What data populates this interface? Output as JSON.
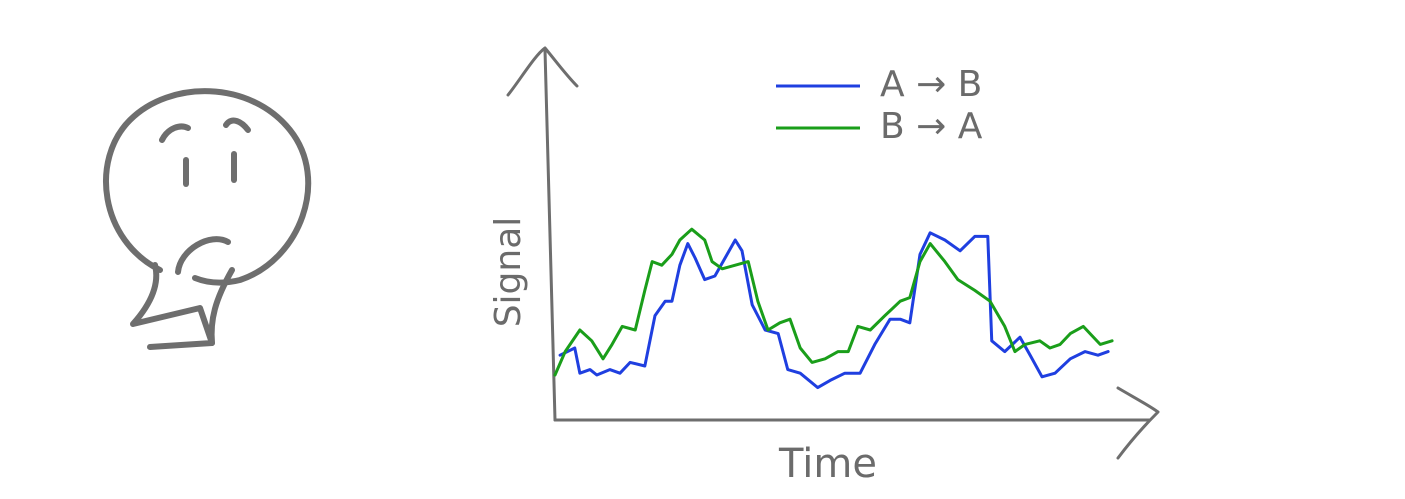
{
  "chart_data": {
    "type": "line",
    "x_label": "Time",
    "y_label": "Signal",
    "xlim": [
      0,
      100
    ],
    "ylim": [
      0,
      100
    ],
    "legend": "upper center",
    "series": [
      {
        "name": "A → B",
        "color": "#1f3fe0",
        "x": [
          0.9,
          3.5,
          4.4,
          6.2,
          7.4,
          9.7,
          11.5,
          13.3,
          15.9,
          17.7,
          19.5,
          20.7,
          22.1,
          23.5,
          24.8,
          26.5,
          28.3,
          30.1,
          31.9,
          33.1,
          34.9,
          37.2,
          39.5,
          41.2,
          43.4,
          46.5,
          48.7,
          51.3,
          54,
          56.6,
          59.3,
          61.1,
          62.8,
          64.6,
          66.4,
          69,
          71.7,
          74.3,
          76.6,
          77.3,
          79.6,
          82.3,
          84.1,
          86.2,
          88.5,
          91.2,
          93.8,
          96.1,
          97.9
        ],
        "values": [
          18,
          20,
          13,
          14,
          12.5,
          14,
          13,
          16,
          15,
          29,
          33,
          33,
          43,
          49,
          45,
          39,
          40,
          45,
          50,
          47,
          32,
          25,
          24,
          14,
          13,
          9,
          11,
          13,
          13,
          21,
          28,
          28,
          27,
          46,
          52,
          50,
          47,
          51,
          51,
          22,
          19,
          23,
          18,
          12,
          13,
          17,
          19,
          18,
          19
        ]
      },
      {
        "name": "B → A",
        "color": "#1a9e1a",
        "x": [
          0,
          1.8,
          4.4,
          6.5,
          8.5,
          10.1,
          11.9,
          14.2,
          15.9,
          17.2,
          18.9,
          20.7,
          22.1,
          24.2,
          26.5,
          27.8,
          29.6,
          31.9,
          34.2,
          35.9,
          37.7,
          39.8,
          41.6,
          43.4,
          45.5,
          47.8,
          50.1,
          51.9,
          53.6,
          55.8,
          58.4,
          61.1,
          62.8,
          64.6,
          66.4,
          69,
          71.3,
          74.3,
          77,
          79.6,
          81.4,
          83.2,
          85.8,
          87.6,
          89.4,
          91.2,
          93.5,
          94.7,
          96.5,
          98.6
        ],
        "values": [
          12.5,
          19,
          25,
          22,
          17,
          21,
          26,
          25,
          36,
          44,
          43,
          46,
          50,
          53,
          50,
          44,
          42,
          43,
          44,
          33,
          25,
          27,
          28,
          20,
          16,
          17,
          19,
          19,
          26,
          25,
          29,
          33,
          34,
          44,
          49,
          44,
          39,
          36,
          33,
          26,
          19,
          21,
          22,
          20,
          21,
          24,
          26,
          24,
          21,
          22
        ]
      }
    ]
  }
}
